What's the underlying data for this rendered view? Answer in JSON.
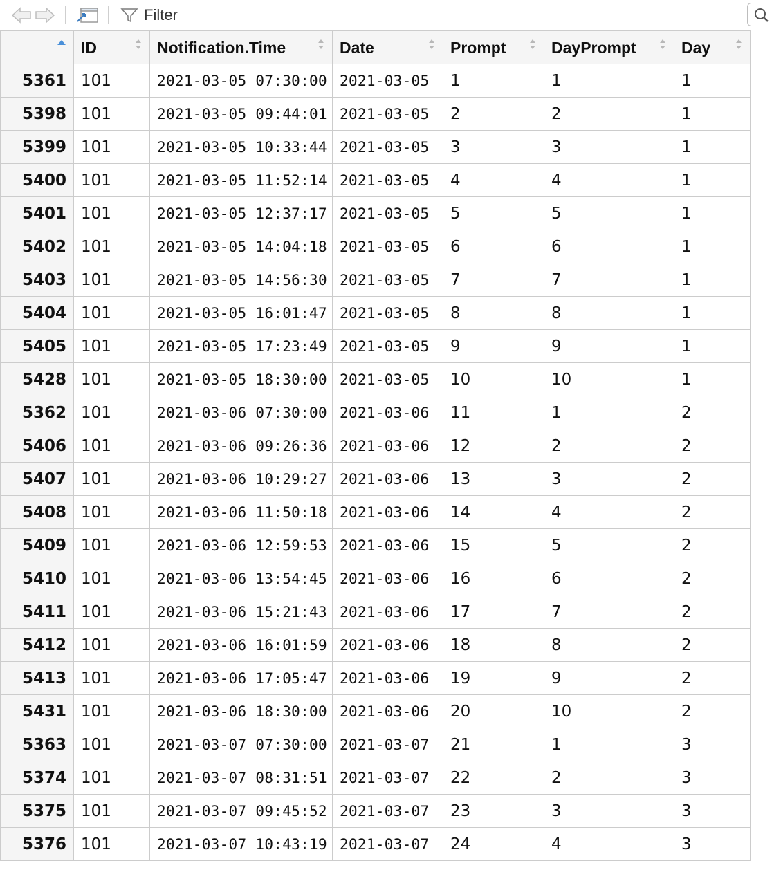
{
  "toolbar": {
    "back_icon": "arrow-left-icon",
    "forward_icon": "arrow-right-icon",
    "popout_icon": "popout-window-icon",
    "filter_icon": "funnel-icon",
    "filter_label": "Filter",
    "search_icon": "magnifier-icon",
    "search_value": ""
  },
  "table": {
    "columns": [
      "",
      "ID",
      "Notification.Time",
      "Date",
      "Prompt",
      "DayPrompt",
      "Day"
    ],
    "sorted_column": "",
    "sort_direction": "ascending",
    "rows": [
      [
        "5361",
        "101",
        "2021-03-05 07:30:00",
        "2021-03-05",
        "1",
        "1",
        "1"
      ],
      [
        "5398",
        "101",
        "2021-03-05 09:44:01",
        "2021-03-05",
        "2",
        "2",
        "1"
      ],
      [
        "5399",
        "101",
        "2021-03-05 10:33:44",
        "2021-03-05",
        "3",
        "3",
        "1"
      ],
      [
        "5400",
        "101",
        "2021-03-05 11:52:14",
        "2021-03-05",
        "4",
        "4",
        "1"
      ],
      [
        "5401",
        "101",
        "2021-03-05 12:37:17",
        "2021-03-05",
        "5",
        "5",
        "1"
      ],
      [
        "5402",
        "101",
        "2021-03-05 14:04:18",
        "2021-03-05",
        "6",
        "6",
        "1"
      ],
      [
        "5403",
        "101",
        "2021-03-05 14:56:30",
        "2021-03-05",
        "7",
        "7",
        "1"
      ],
      [
        "5404",
        "101",
        "2021-03-05 16:01:47",
        "2021-03-05",
        "8",
        "8",
        "1"
      ],
      [
        "5405",
        "101",
        "2021-03-05 17:23:49",
        "2021-03-05",
        "9",
        "9",
        "1"
      ],
      [
        "5428",
        "101",
        "2021-03-05 18:30:00",
        "2021-03-05",
        "10",
        "10",
        "1"
      ],
      [
        "5362",
        "101",
        "2021-03-06 07:30:00",
        "2021-03-06",
        "11",
        "1",
        "2"
      ],
      [
        "5406",
        "101",
        "2021-03-06 09:26:36",
        "2021-03-06",
        "12",
        "2",
        "2"
      ],
      [
        "5407",
        "101",
        "2021-03-06 10:29:27",
        "2021-03-06",
        "13",
        "3",
        "2"
      ],
      [
        "5408",
        "101",
        "2021-03-06 11:50:18",
        "2021-03-06",
        "14",
        "4",
        "2"
      ],
      [
        "5409",
        "101",
        "2021-03-06 12:59:53",
        "2021-03-06",
        "15",
        "5",
        "2"
      ],
      [
        "5410",
        "101",
        "2021-03-06 13:54:45",
        "2021-03-06",
        "16",
        "6",
        "2"
      ],
      [
        "5411",
        "101",
        "2021-03-06 15:21:43",
        "2021-03-06",
        "17",
        "7",
        "2"
      ],
      [
        "5412",
        "101",
        "2021-03-06 16:01:59",
        "2021-03-06",
        "18",
        "8",
        "2"
      ],
      [
        "5413",
        "101",
        "2021-03-06 17:05:47",
        "2021-03-06",
        "19",
        "9",
        "2"
      ],
      [
        "5431",
        "101",
        "2021-03-06 18:30:00",
        "2021-03-06",
        "20",
        "10",
        "2"
      ],
      [
        "5363",
        "101",
        "2021-03-07 07:30:00",
        "2021-03-07",
        "21",
        "1",
        "3"
      ],
      [
        "5374",
        "101",
        "2021-03-07 08:31:51",
        "2021-03-07",
        "22",
        "2",
        "3"
      ],
      [
        "5375",
        "101",
        "2021-03-07 09:45:52",
        "2021-03-07",
        "23",
        "3",
        "3"
      ],
      [
        "5376",
        "101",
        "2021-03-07 10:43:19",
        "2021-03-07",
        "24",
        "4",
        "3"
      ]
    ]
  },
  "colors": {
    "header_bg": "#f5f5f5",
    "border": "#cccccc",
    "sort_active": "#4a90d9",
    "sort_inactive": "#b8b8b8"
  }
}
